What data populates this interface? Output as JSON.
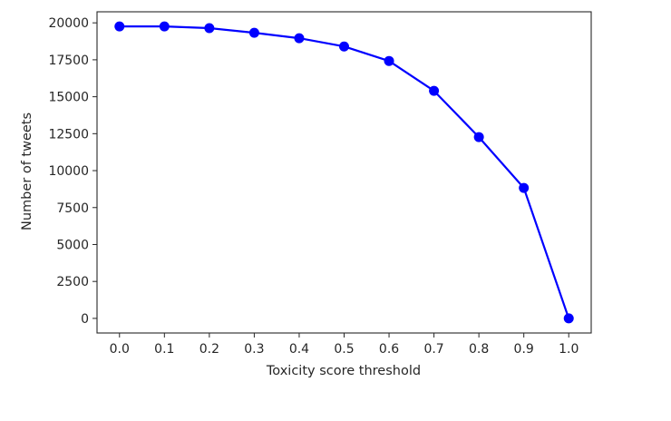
{
  "chart_data": {
    "type": "line",
    "title": "",
    "xlabel": "Toxicity score threshold",
    "ylabel": "Number of tweets",
    "x": [
      0.0,
      0.1,
      0.2,
      0.3,
      0.4,
      0.5,
      0.6,
      0.7,
      0.8,
      0.9,
      1.0
    ],
    "series": [
      {
        "name": "Number of tweets",
        "color": "#0000ff",
        "marker": "circle",
        "values": [
          19760,
          19760,
          19640,
          19330,
          18960,
          18400,
          17420,
          15400,
          12270,
          8830,
          0
        ]
      }
    ],
    "xticks": [
      "0.0",
      "0.1",
      "0.2",
      "0.3",
      "0.4",
      "0.5",
      "0.6",
      "0.7",
      "0.8",
      "0.9",
      "1.0"
    ],
    "yticks": [
      "0",
      "2500",
      "5000",
      "7500",
      "10000",
      "12500",
      "15000",
      "17500",
      "20000"
    ],
    "xlim": [
      -0.05,
      1.05
    ],
    "ylim": [
      -988,
      20748
    ],
    "grid": false,
    "legend": null
  }
}
